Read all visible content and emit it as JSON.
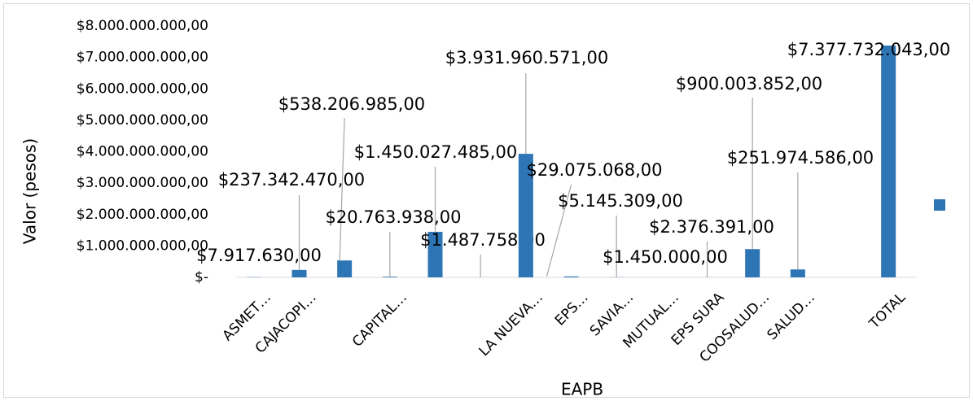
{
  "chart_data": {
    "type": "bar",
    "x_label": "EAPB",
    "y_label": "Valor (pesos)",
    "categories": [
      "ASMET…",
      "CAJACOPI…",
      null,
      "CAPITAL…",
      null,
      null,
      "LA NUEVA…",
      "EPS…",
      "SAVIA…",
      "MUTUAL…",
      "EPS SURA",
      "COOSALUD…",
      "SALUD…",
      null,
      "TOTAL"
    ],
    "values": [
      7917630,
      237342470,
      538206985,
      20763938,
      1450027485,
      1487758,
      3931960571,
      29075068,
      5145309,
      1450000,
      2376391,
      900003852,
      251974586,
      null,
      7377732043
    ],
    "value_labels": [
      "$7.917.630,00",
      "$237.342.470,00",
      "$538.206.985,00",
      "$20.763.938,00",
      "$1.450.027.485,00",
      "$1.487.758,00",
      "$3.931.960.571,00",
      "$29.075.068,00",
      "$5.145.309,00",
      "$1.450.000,00",
      "$2.376.391,00",
      "$900.003.852,00",
      "$251.974.586,00",
      null,
      "$7.377.732.043,00"
    ],
    "color": "#2e75b6",
    "ylim": [
      0,
      8000000000
    ],
    "yticks": [
      {
        "value": 0,
        "label": "$-"
      },
      {
        "value": 1000000000,
        "label": "$1.000.000.000,00"
      },
      {
        "value": 2000000000,
        "label": "$2.000.000.000,00"
      },
      {
        "value": 3000000000,
        "label": "$3.000.000.000,00"
      },
      {
        "value": 4000000000,
        "label": "$4.000.000.000,00"
      },
      {
        "value": 5000000000,
        "label": "$5.000.000.000,00"
      },
      {
        "value": 6000000000,
        "label": "$6.000.000.000,00"
      },
      {
        "value": 7000000000,
        "label": "$7.000.000.000,00"
      },
      {
        "value": 8000000000,
        "label": "$8.000.000.000,00"
      }
    ],
    "grid": false,
    "legend": "right"
  }
}
